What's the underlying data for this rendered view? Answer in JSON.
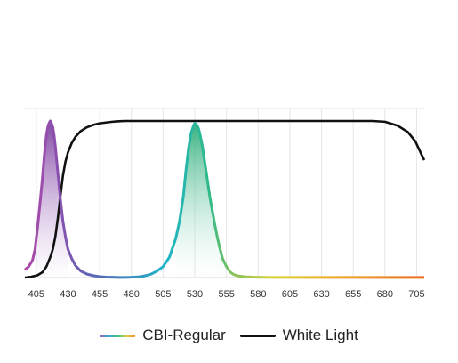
{
  "chart_data": {
    "type": "line",
    "x_ticks": [
      405,
      430,
      455,
      480,
      505,
      530,
      555,
      580,
      605,
      630,
      655,
      680,
      705
    ],
    "xlim": [
      396,
      711
    ],
    "ylim": [
      0,
      1
    ],
    "grid": "vertical",
    "legend_placement": "bottom-center",
    "series": [
      {
        "name": "CBI-Regular",
        "style": "spectral-gradient",
        "x": [
          396,
          399,
          402,
          404,
          406,
          408,
          410,
          411,
          412,
          413,
          414,
          415,
          416,
          417,
          418,
          419,
          420,
          422,
          424,
          426,
          428,
          430,
          433,
          436,
          440,
          445,
          450,
          455,
          460,
          465,
          470,
          475,
          480,
          485,
          490,
          495,
          500,
          505,
          510,
          515,
          518,
          521,
          523,
          525,
          527,
          529,
          530,
          531,
          532,
          533,
          534,
          536,
          538,
          540,
          542,
          544,
          546,
          548,
          550,
          552,
          555,
          558,
          561,
          565,
          570,
          575,
          580,
          590,
          600,
          620,
          650,
          680,
          711
        ],
        "y": [
          0.05,
          0.07,
          0.11,
          0.18,
          0.32,
          0.48,
          0.65,
          0.75,
          0.84,
          0.91,
          0.96,
          0.985,
          1.0,
          0.985,
          0.96,
          0.91,
          0.84,
          0.67,
          0.5,
          0.36,
          0.26,
          0.18,
          0.12,
          0.075,
          0.042,
          0.022,
          0.012,
          0.006,
          0.003,
          0.002,
          0.001,
          0.001,
          0.002,
          0.004,
          0.01,
          0.02,
          0.04,
          0.07,
          0.13,
          0.25,
          0.36,
          0.52,
          0.68,
          0.82,
          0.92,
          0.97,
          0.985,
          0.98,
          0.97,
          0.95,
          0.92,
          0.84,
          0.73,
          0.62,
          0.51,
          0.42,
          0.33,
          0.25,
          0.18,
          0.12,
          0.07,
          0.035,
          0.018,
          0.009,
          0.005,
          0.003,
          0.002,
          0.001,
          0.001,
          0.001,
          0.001,
          0.001,
          0.001
        ]
      },
      {
        "name": "White Light",
        "style": "solid",
        "color": "#111111",
        "x": [
          396,
          401,
          406,
          410,
          413,
          416,
          418,
          420,
          422,
          424,
          426,
          428,
          430,
          433,
          436,
          440,
          445,
          450,
          455,
          460,
          465,
          470,
          475,
          480,
          500,
          550,
          600,
          650,
          670,
          680,
          690,
          698,
          704,
          708,
          711
        ],
        "y": [
          0.0,
          0.005,
          0.015,
          0.035,
          0.07,
          0.13,
          0.18,
          0.26,
          0.38,
          0.52,
          0.65,
          0.74,
          0.8,
          0.86,
          0.9,
          0.935,
          0.96,
          0.975,
          0.985,
          0.99,
          0.995,
          0.998,
          1.0,
          1.0,
          1.0,
          1.0,
          1.0,
          1.0,
          1.0,
          0.995,
          0.97,
          0.93,
          0.87,
          0.8,
          0.75
        ]
      }
    ]
  },
  "legend": {
    "cbi_label": "CBI-Regular",
    "white_label": "White Light"
  }
}
